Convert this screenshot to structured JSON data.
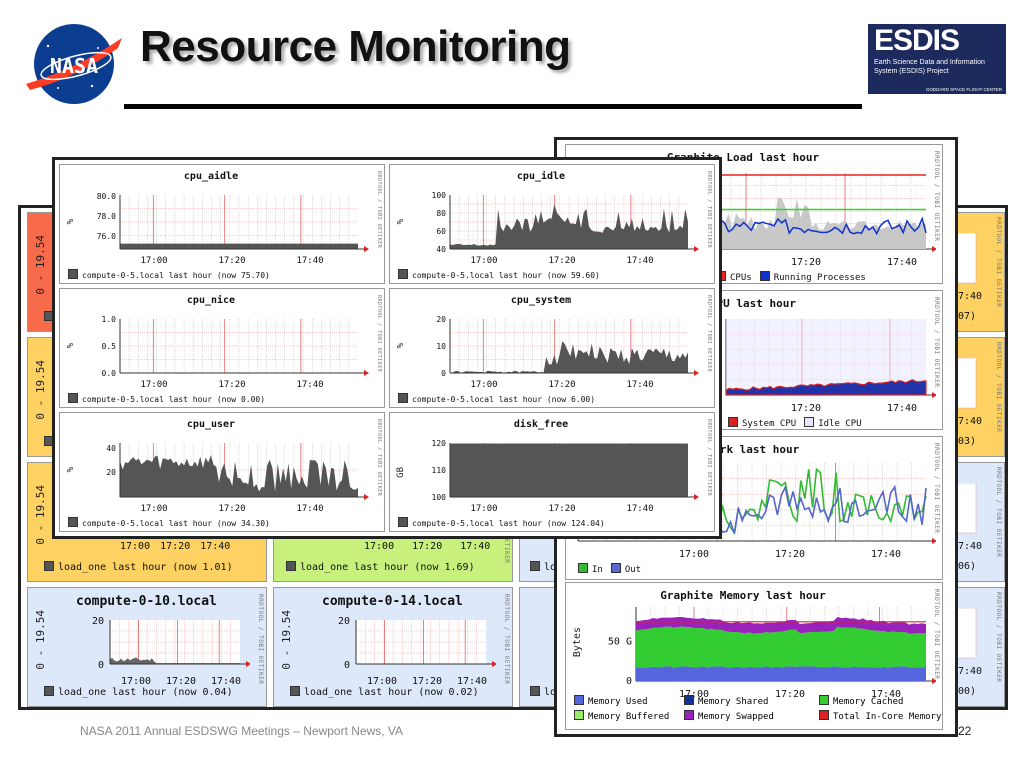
{
  "slide": {
    "title": "Resource Monitoring",
    "footer": "NASA 2011 Annual ESDSWG Meetings – Newport News, VA",
    "page_number": "22",
    "nasa_logo_text": "NASA",
    "esdis_logo": {
      "title": "ESDIS",
      "subtitle": "Earth Science Data and Information System (ESDIS) Project",
      "tiny": "GODDARD SPACE FLIGHT CENTER"
    }
  },
  "rrd_label": "RRDTOOL / TOBI OETIKER",
  "back": {
    "y_range": "0 - 19.54",
    "rows": [
      {
        "color": "#f76b4a",
        "footer": "",
        "times": [
          "",
          "",
          ""
        ]
      },
      {
        "color": "#fdd162",
        "footer": "",
        "times": [
          "",
          "",
          ""
        ]
      },
      {
        "color": "#fdd162",
        "footer": "load_one last hour (now 1.01)",
        "times": [
          "17:00",
          "17:20",
          "17:40"
        ]
      }
    ],
    "mid_panel": {
      "color": "#c8f07c",
      "footer": "load_one last hour (now 1.69)",
      "times": [
        "17:00",
        "17:20",
        "17:40"
      ]
    },
    "third_col_footer": "lo",
    "bottom_row": [
      {
        "host": "compute-0-10.local",
        "color": "#dde9fb",
        "footer": "load_one last hour (now 0.04)",
        "y_ticks": [
          "20",
          "0"
        ],
        "times": [
          "17:00",
          "17:20",
          "17:40"
        ]
      },
      {
        "host": "compute-0-14.local",
        "color": "#dde9fb",
        "footer": "load_one last hour (now 0.02)",
        "y_ticks": [
          "20",
          "0"
        ],
        "times": [
          "17:00",
          "17:20",
          "17:40"
        ]
      }
    ],
    "right_col": [
      {
        "color": "#fdd162",
        "time": "7:40",
        "now": "07)"
      },
      {
        "color": "#fdd162",
        "time": "7:40",
        "now": "03)"
      },
      {
        "color": "#dde9fb",
        "time": "7:40",
        "now": "06)"
      },
      {
        "color": "#dde9fb",
        "time": "7:40",
        "now": "00)"
      }
    ]
  },
  "graphite": {
    "load": {
      "title": "Graphite Load last hour",
      "times": [
        "17:20",
        "17:40"
      ],
      "legend": [
        {
          "label": "CPUs",
          "color": "#ee2222"
        },
        {
          "label": "Running Processes",
          "color": "#1133cc"
        }
      ]
    },
    "cpu": {
      "title": "te CPU last hour",
      "times": [
        "17:20",
        "17:40"
      ],
      "legend": [
        {
          "label": "System CPU",
          "color": "#dd2222"
        },
        {
          "label": "Idle CPU",
          "color": "#e6e6ff"
        }
      ]
    },
    "network": {
      "title": "Network last hour",
      "times": [
        "17:00",
        "17:20",
        "17:40"
      ],
      "legend": [
        {
          "label": "In",
          "color": "#33bb33"
        },
        {
          "label": "Out",
          "color": "#5566cc"
        }
      ]
    },
    "memory": {
      "title": "Graphite Memory last hour",
      "ylabel": "Bytes",
      "y_ticks": [
        "50 G",
        "0"
      ],
      "times": [
        "17:00",
        "17:20",
        "17:40"
      ],
      "legend": [
        {
          "label": "Memory Used",
          "color": "#5566dd"
        },
        {
          "label": "Memory Shared",
          "color": "#113399"
        },
        {
          "label": "Memory Cached",
          "color": "#33cc33"
        },
        {
          "label": "Memory Buffered",
          "color": "#99ee66"
        },
        {
          "label": "Memory Swapped",
          "color": "#9922bb"
        },
        {
          "label": "Total In-Core Memory",
          "color": "#dd2222"
        }
      ]
    }
  },
  "front": {
    "times": [
      "17:00",
      "17:20",
      "17:40"
    ],
    "panels": [
      {
        "key": "cpu_aidle",
        "title": "cpu_aidle",
        "ylabel": "%",
        "y_ticks": [
          "80.0",
          "78.0",
          "76.0"
        ],
        "footer": "compute-0-5.local last hour (now 75.70)"
      },
      {
        "key": "cpu_idle",
        "title": "cpu_idle",
        "ylabel": "%",
        "y_ticks": [
          "100",
          "80",
          "60",
          "40"
        ],
        "footer": "compute-0-5.local last hour (now 59.60)"
      },
      {
        "key": "cpu_nice",
        "title": "cpu_nice",
        "ylabel": "%",
        "y_ticks": [
          "1.0",
          "0.5",
          "0.0"
        ],
        "footer": "compute-0-5.local last hour (now 0.00)"
      },
      {
        "key": "cpu_system",
        "title": "cpu_system",
        "ylabel": "%",
        "y_ticks": [
          "20",
          "10",
          "0"
        ],
        "footer": "compute-0-5.local last hour (now 6.00)"
      },
      {
        "key": "cpu_user",
        "title": "cpu_user",
        "ylabel": "%",
        "y_ticks": [
          "40",
          "20"
        ],
        "footer": "compute-0-5.local last hour (now 34.30)"
      },
      {
        "key": "disk_free",
        "title": "disk_free",
        "ylabel": "GB",
        "y_ticks": [
          "120",
          "110",
          "100"
        ],
        "footer": "compute-0-5.local last hour (now 124.04)"
      }
    ]
  },
  "colors": {
    "grid": "#e8a0a0",
    "fill": "#555555",
    "arrow": "#dd2222"
  }
}
